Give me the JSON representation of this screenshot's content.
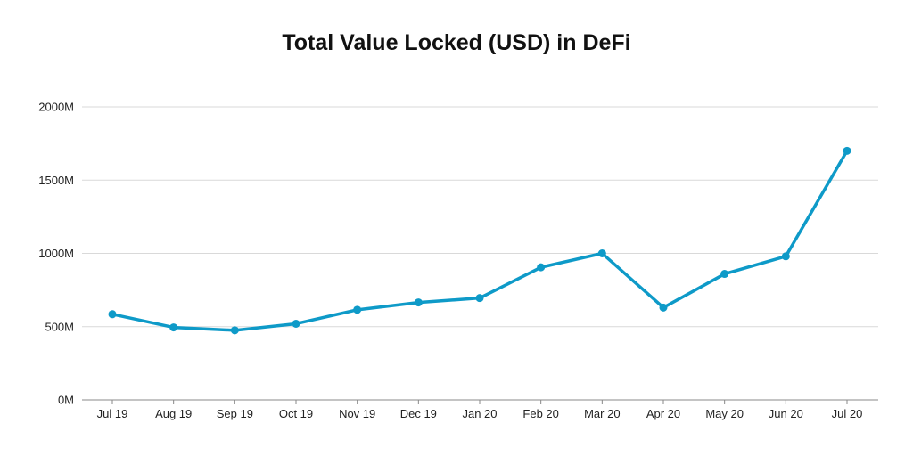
{
  "chart_data": {
    "type": "line",
    "title": "Total Value Locked (USD) in DeFi",
    "xlabel": "",
    "ylabel": "",
    "categories": [
      "Jul 19",
      "Aug 19",
      "Sep 19",
      "Oct 19",
      "Nov 19",
      "Dec 19",
      "Jan 20",
      "Feb 20",
      "Mar 20",
      "Apr 20",
      "May 20",
      "Jun 20",
      "Jul 20"
    ],
    "series": [
      {
        "values": [
          585,
          495,
          475,
          520,
          615,
          665,
          695,
          905,
          1000,
          630,
          860,
          980,
          1700
        ],
        "color": "#0e9ac8"
      }
    ],
    "ylim": [
      0,
      2000
    ],
    "yticks": [
      0,
      500,
      1000,
      1500,
      2000
    ],
    "ytick_labels": [
      "0M",
      "500M",
      "1000M",
      "1500M",
      "2000M"
    ],
    "grid": true,
    "legend": "none"
  }
}
